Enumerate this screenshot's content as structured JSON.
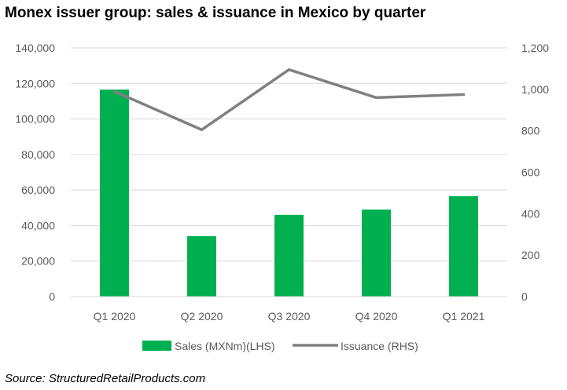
{
  "title": "Monex issuer group: sales & issuance in Mexico by quarter",
  "source": "Source: StructuredRetailProducts.com",
  "chart_data": {
    "type": "bar",
    "categories": [
      "Q1 2020",
      "Q2 2020",
      "Q3 2020",
      "Q4 2020",
      "Q1 2021"
    ],
    "series": [
      {
        "name": "Sales (MXNm)(LHS)",
        "type": "bar",
        "axis": "left",
        "color": "#00b050",
        "values": [
          116500,
          34000,
          46000,
          49000,
          56500
        ]
      },
      {
        "name": "Issuance (RHS)",
        "type": "line",
        "axis": "right",
        "color": "#808080",
        "values": [
          990,
          805,
          1095,
          960,
          975
        ]
      }
    ],
    "y_left": {
      "range": [
        0,
        140000
      ],
      "ticks": [
        "0",
        "20,000",
        "40,000",
        "60,000",
        "80,000",
        "100,000",
        "120,000",
        "140,000"
      ],
      "tick_values": [
        0,
        20000,
        40000,
        60000,
        80000,
        100000,
        120000,
        140000
      ]
    },
    "y_right": {
      "range": [
        0,
        1200
      ],
      "ticks": [
        "0",
        "200",
        "400",
        "600",
        "800",
        "1,000",
        "1,200"
      ],
      "tick_values": [
        0,
        200,
        400,
        600,
        800,
        1000,
        1200
      ]
    },
    "grid": true,
    "legend_position": "bottom"
  }
}
